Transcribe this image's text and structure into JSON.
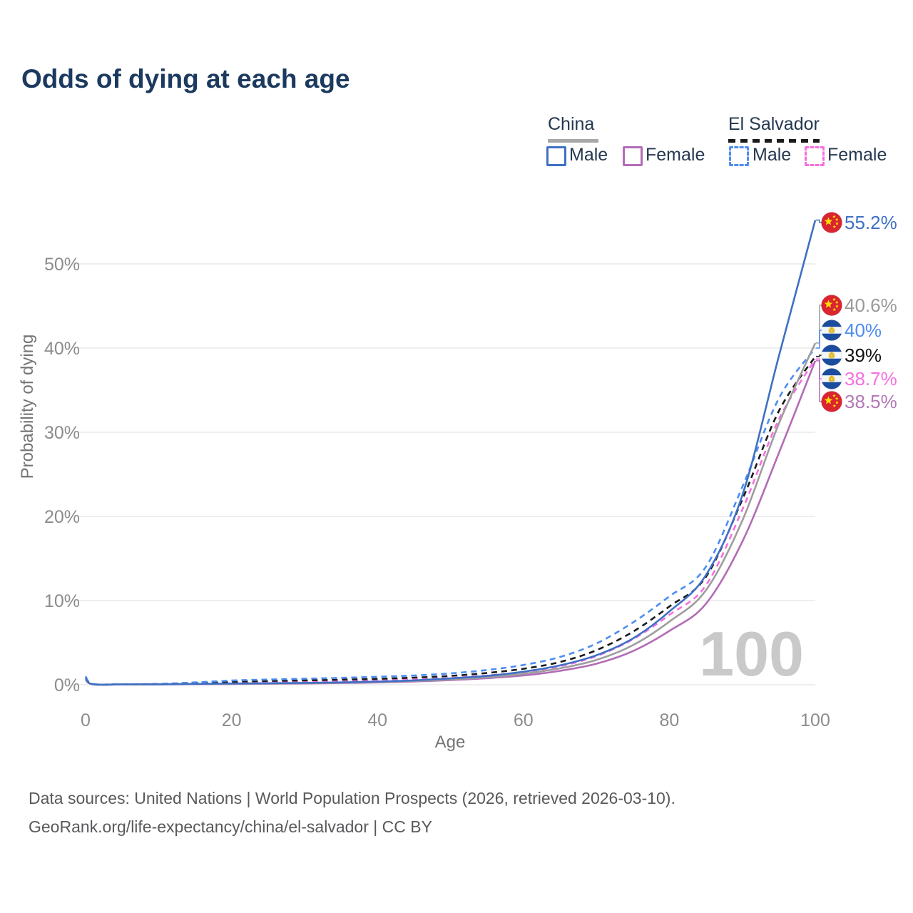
{
  "title": "Odds of dying at each age",
  "legend": {
    "groups": [
      {
        "id": "china",
        "label": "China",
        "line_style": "solid",
        "line_color": "#a8a8a8",
        "items": [
          {
            "id": "china-male",
            "label": "Male",
            "color": "#3f70c4"
          },
          {
            "id": "china-female",
            "label": "Female",
            "color": "#b26cb6"
          }
        ]
      },
      {
        "id": "el-salvador",
        "label": "El Salvador",
        "line_style": "dashed",
        "line_color": "#1a1a1a",
        "items": [
          {
            "id": "el-salvador-male",
            "label": "Male",
            "color": "#4d8df2"
          },
          {
            "id": "el-salvador-female",
            "label": "Female",
            "color": "#f66fe0"
          }
        ]
      }
    ]
  },
  "chart_data": {
    "type": "line",
    "title": "Odds of dying at each age",
    "xlabel": "Age",
    "ylabel": "Probability of dying",
    "xlim": [
      0,
      100
    ],
    "ylim": [
      0,
      57
    ],
    "grid": "horizontal-only",
    "legend_position": "top-right",
    "watermark": "100",
    "x_ticks": [
      {
        "v": 0,
        "label": "0"
      },
      {
        "v": 20,
        "label": "20"
      },
      {
        "v": 40,
        "label": "40"
      },
      {
        "v": 60,
        "label": "60"
      },
      {
        "v": 80,
        "label": "80"
      },
      {
        "v": 100,
        "label": "100"
      }
    ],
    "y_ticks": [
      {
        "v": 0,
        "label": "0%"
      },
      {
        "v": 10,
        "label": "10%"
      },
      {
        "v": 20,
        "label": "20%"
      },
      {
        "v": 30,
        "label": "30%"
      },
      {
        "v": 40,
        "label": "40%"
      },
      {
        "v": 50,
        "label": "50%"
      }
    ],
    "x": [
      0,
      1,
      5,
      10,
      15,
      20,
      25,
      30,
      35,
      40,
      45,
      50,
      55,
      60,
      65,
      70,
      75,
      80,
      85,
      90,
      95,
      100
    ],
    "series": [
      {
        "name": "China Male",
        "country": "China",
        "sex": "Male",
        "color": "#3f70c4",
        "dash": false,
        "flag": "china",
        "end_label": "55.2%",
        "label_color": "#3f70c4",
        "values": [
          0.7,
          0.06,
          0.04,
          0.05,
          0.1,
          0.14,
          0.18,
          0.22,
          0.28,
          0.38,
          0.52,
          0.75,
          1.05,
          1.55,
          2.3,
          3.5,
          5.5,
          8.7,
          13.0,
          22.5,
          39.0,
          55.2
        ]
      },
      {
        "name": "China Both Sexes",
        "country": "China",
        "sex": "Both",
        "color": "#9d9d9d",
        "dash": false,
        "flag": "china",
        "end_label": "40.6%",
        "label_color": "#9a9a9a",
        "values": [
          0.65,
          0.055,
          0.035,
          0.045,
          0.085,
          0.12,
          0.15,
          0.19,
          0.24,
          0.32,
          0.45,
          0.64,
          0.9,
          1.3,
          1.95,
          2.95,
          4.7,
          7.5,
          11.2,
          19.5,
          31.0,
          40.6
        ]
      },
      {
        "name": "El Salvador Male",
        "country": "El Salvador",
        "sex": "Male",
        "color": "#4d8df2",
        "dash": true,
        "flag": "el-salvador",
        "end_label": "40%",
        "label_color": "#4d8df2",
        "values": [
          1.0,
          0.09,
          0.07,
          0.1,
          0.28,
          0.5,
          0.62,
          0.72,
          0.82,
          0.95,
          1.1,
          1.35,
          1.75,
          2.35,
          3.3,
          4.9,
          7.4,
          10.5,
          14.0,
          23.5,
          34.0,
          40.0
        ]
      },
      {
        "name": "El Salvador Both Sexes",
        "country": "El Salvador",
        "sex": "Both",
        "color": "#1a1a1a",
        "dash": true,
        "flag": "el-salvador",
        "end_label": "39%",
        "label_color": "#111111",
        "values": [
          0.9,
          0.08,
          0.06,
          0.08,
          0.2,
          0.36,
          0.45,
          0.52,
          0.6,
          0.7,
          0.85,
          1.05,
          1.4,
          1.9,
          2.7,
          4.1,
          6.3,
          9.3,
          12.8,
          22.0,
          32.5,
          39.0
        ]
      },
      {
        "name": "El Salvador Female",
        "country": "El Salvador",
        "sex": "Female",
        "color": "#f66fe0",
        "dash": true,
        "flag": "el-salvador",
        "end_label": "38.7%",
        "label_color": "#f66fe0",
        "values": [
          0.8,
          0.07,
          0.05,
          0.06,
          0.13,
          0.22,
          0.28,
          0.34,
          0.42,
          0.5,
          0.62,
          0.8,
          1.1,
          1.5,
          2.2,
          3.4,
          5.4,
          8.3,
          11.8,
          20.8,
          31.5,
          38.7
        ]
      },
      {
        "name": "China Female",
        "country": "China",
        "sex": "Female",
        "color": "#b26cb6",
        "dash": false,
        "flag": "china",
        "end_label": "38.5%",
        "label_color": "#b379b7",
        "values": [
          0.6,
          0.05,
          0.03,
          0.04,
          0.07,
          0.09,
          0.12,
          0.15,
          0.2,
          0.27,
          0.38,
          0.55,
          0.78,
          1.1,
          1.65,
          2.5,
          4.0,
          6.4,
          9.6,
          17.0,
          27.5,
          38.5
        ]
      }
    ]
  },
  "flags": {
    "china": {
      "bg": "#da2430",
      "star": "#ffde00"
    },
    "el_salvador": {
      "band": "#1b4c9e",
      "middle": "#f4f6f8",
      "emblem": "#f0cd45",
      "emblem_dark": "#c9a227"
    }
  },
  "footer": {
    "line1": "Data sources: United Nations | World Population Prospects (2026, retrieved 2026-03-10).",
    "line2": "GeoRank.org/life-expectancy/china/el-salvador | CC BY"
  }
}
